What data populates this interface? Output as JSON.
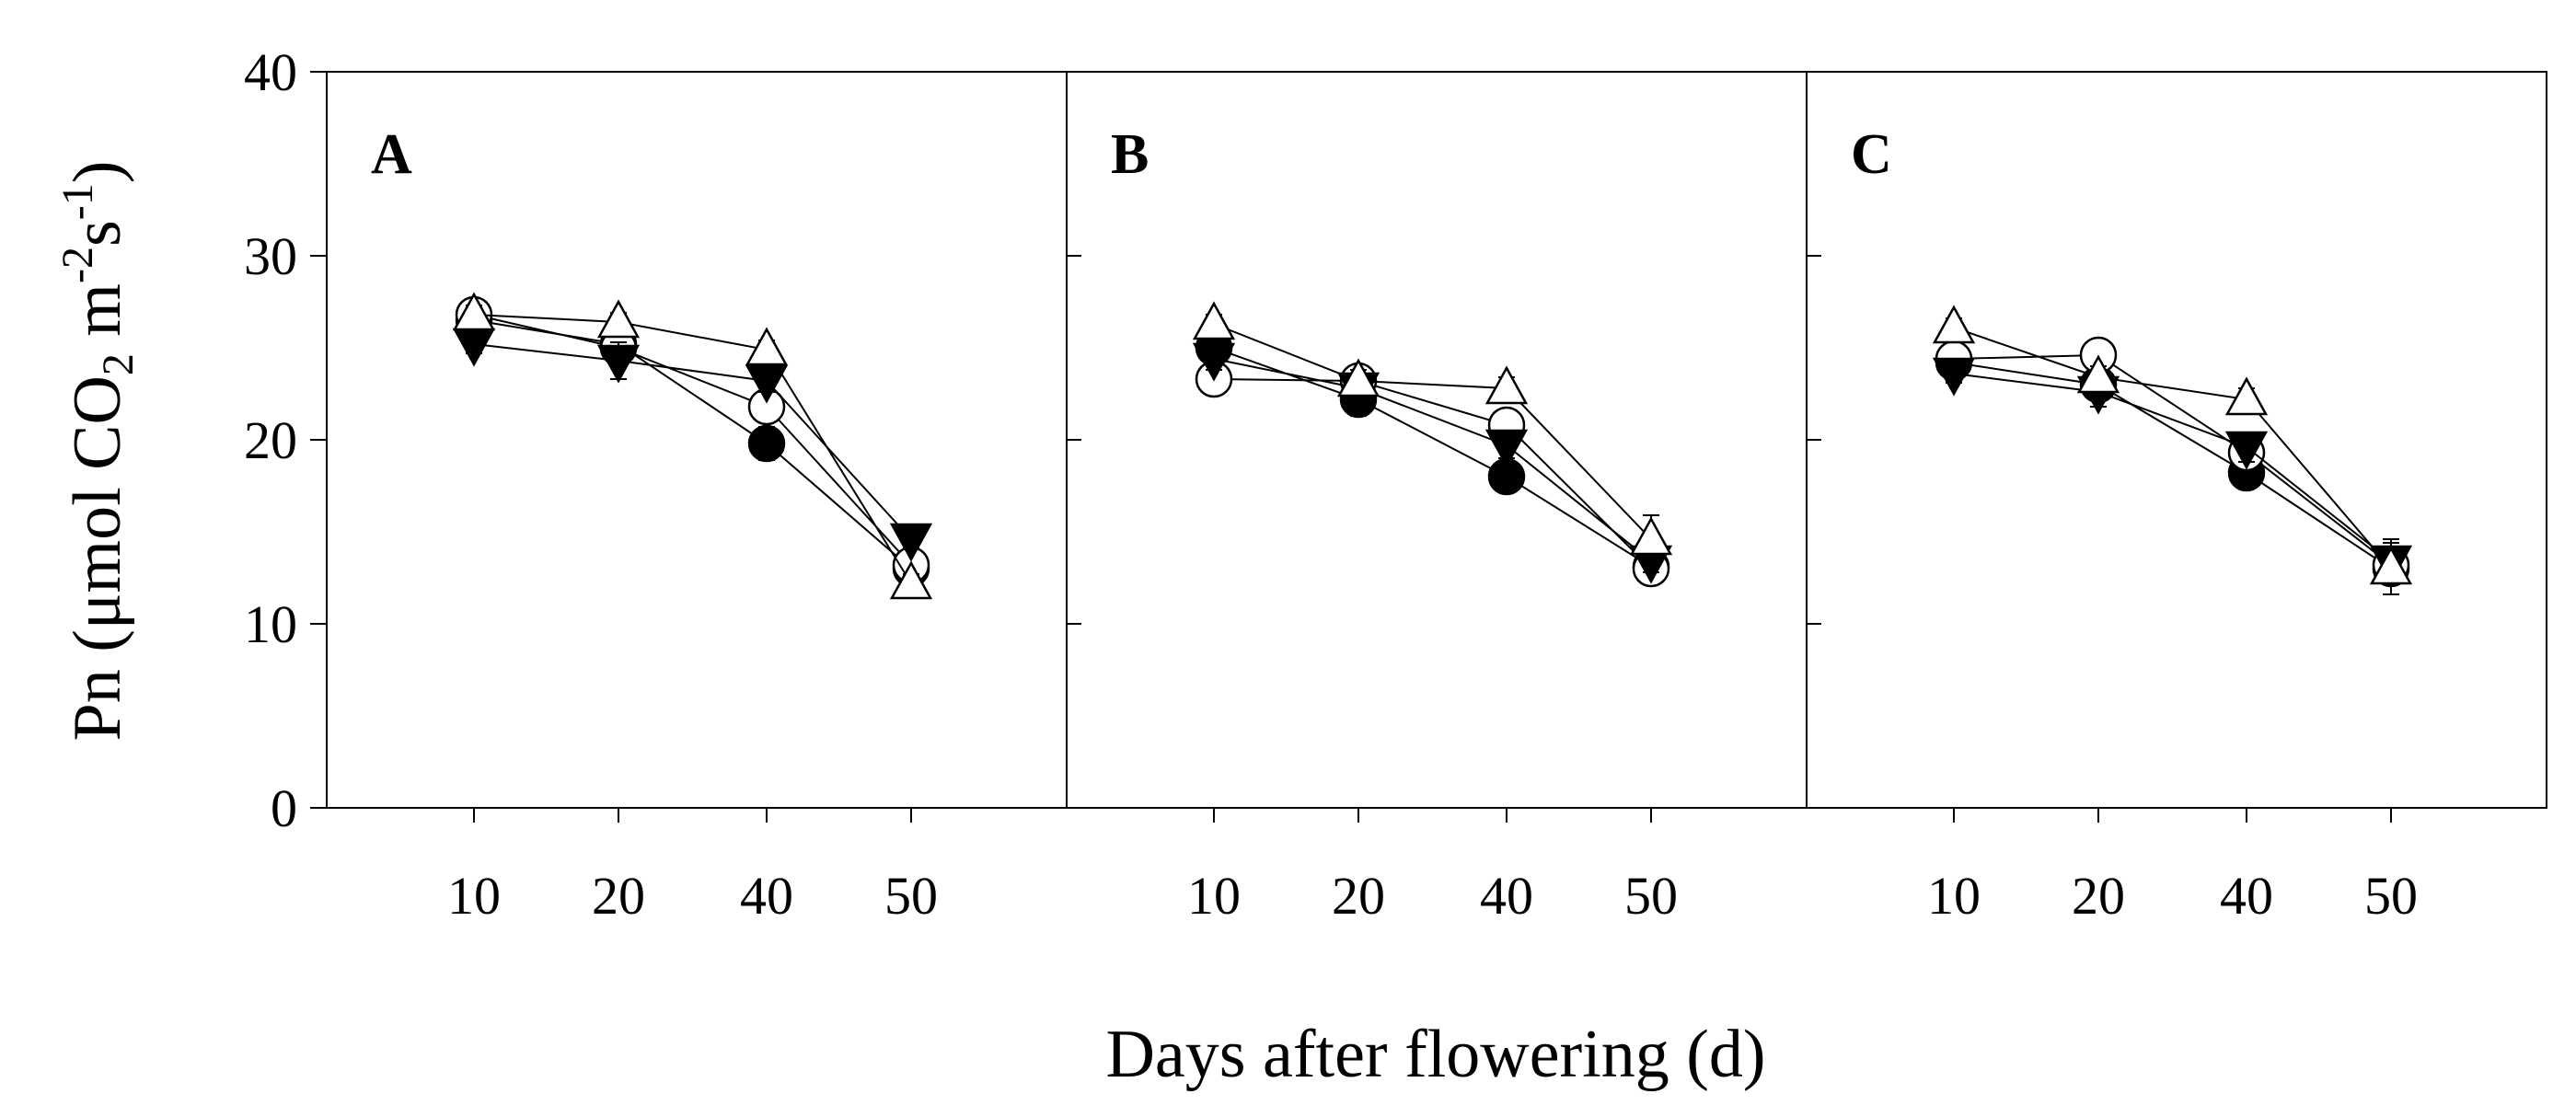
{
  "figure": {
    "ylabel_main": "Pn (μmol CO",
    "ylabel_sub": "2",
    "ylabel_unit": " m",
    "ylabel_exp1": "-2",
    "ylabel_s": "s",
    "ylabel_exp2": "-1",
    "ylabel_close": ")",
    "xlabel": "Days after flowering (d)"
  },
  "chart_data": [
    {
      "type": "line",
      "panel": "A",
      "title": "A",
      "categories": [
        "10",
        "20",
        "40",
        "50"
      ],
      "ylim": [
        0,
        40
      ],
      "yticks": [
        0,
        10,
        20,
        30,
        40
      ],
      "series": [
        {
          "name": "filled-circle",
          "marker": "circle",
          "filled": true,
          "values": [
            26.5,
            25.2,
            19.8,
            13.0
          ],
          "errors": [
            0.5,
            0.8,
            0.9,
            0.5
          ]
        },
        {
          "name": "open-circle",
          "marker": "circle",
          "filled": false,
          "values": [
            26.8,
            25.0,
            21.8,
            13.2
          ],
          "errors": [
            0.5,
            0.6,
            0.6,
            0.6
          ]
        },
        {
          "name": "filled-triangle-down",
          "marker": "triangle-down",
          "filled": true,
          "values": [
            25.2,
            24.3,
            23.2,
            14.6
          ],
          "errors": [
            0.5,
            1.0,
            0.6,
            0.5
          ]
        },
        {
          "name": "open-triangle-up",
          "marker": "triangle-up",
          "filled": false,
          "values": [
            26.8,
            26.4,
            24.9,
            12.2
          ],
          "errors": [
            0.5,
            0.5,
            0.5,
            0.5
          ]
        }
      ]
    },
    {
      "type": "line",
      "panel": "B",
      "title": "B",
      "categories": [
        "10",
        "20",
        "40",
        "50"
      ],
      "ylim": [
        0,
        40
      ],
      "yticks": [
        0,
        10,
        20,
        30,
        40
      ],
      "series": [
        {
          "name": "filled-circle",
          "marker": "circle",
          "filled": true,
          "values": [
            25.0,
            22.2,
            18.0,
            13.1
          ],
          "errors": [
            0.6,
            0.9,
            0.6,
            0.5
          ]
        },
        {
          "name": "open-circle",
          "marker": "circle",
          "filled": false,
          "values": [
            23.3,
            23.2,
            20.8,
            13.0
          ],
          "errors": [
            0.5,
            0.6,
            0.6,
            0.5
          ]
        },
        {
          "name": "filled-triangle-down",
          "marker": "triangle-down",
          "filled": true,
          "values": [
            24.4,
            22.8,
            19.7,
            13.4
          ],
          "errors": [
            0.6,
            0.7,
            0.7,
            0.6
          ]
        },
        {
          "name": "open-triangle-up",
          "marker": "triangle-up",
          "filled": false,
          "values": [
            26.3,
            23.2,
            22.8,
            14.6
          ],
          "errors": [
            0.5,
            0.6,
            0.6,
            1.3
          ]
        }
      ]
    },
    {
      "type": "line",
      "panel": "C",
      "title": "C",
      "categories": [
        "10",
        "20",
        "40",
        "50"
      ],
      "ylim": [
        0,
        40
      ],
      "yticks": [
        0,
        10,
        20,
        30,
        40
      ],
      "series": [
        {
          "name": "filled-circle",
          "marker": "circle",
          "filled": true,
          "values": [
            24.2,
            23.0,
            18.2,
            13.0
          ],
          "errors": [
            0.5,
            0.7,
            0.6,
            0.6
          ]
        },
        {
          "name": "open-circle",
          "marker": "circle",
          "filled": false,
          "values": [
            24.4,
            24.6,
            19.3,
            13.2
          ],
          "errors": [
            0.5,
            0.5,
            0.6,
            0.6
          ]
        },
        {
          "name": "filled-triangle-down",
          "marker": "triangle-down",
          "filled": true,
          "values": [
            23.6,
            22.6,
            19.6,
            13.4
          ],
          "errors": [
            0.5,
            0.8,
            0.8,
            1.2
          ]
        },
        {
          "name": "open-triangle-up",
          "marker": "triangle-up",
          "filled": false,
          "values": [
            26.1,
            23.4,
            22.2,
            13.0
          ],
          "errors": [
            0.5,
            0.6,
            0.6,
            1.4
          ]
        }
      ]
    }
  ]
}
